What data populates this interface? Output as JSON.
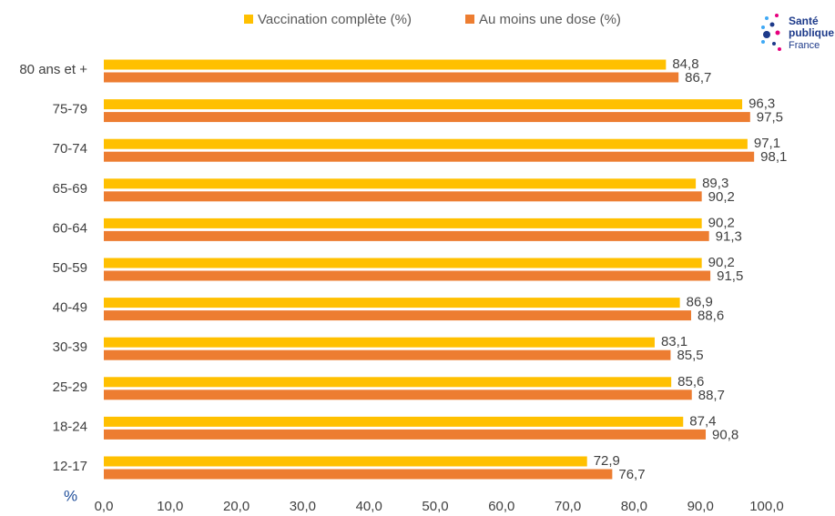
{
  "chart_data": {
    "type": "bar",
    "orientation": "horizontal",
    "axis_label": "%",
    "categories": [
      "80 ans et +",
      "75-79",
      "70-74",
      "65-69",
      "60-64",
      "50-59",
      "40-49",
      "30-39",
      "25-29",
      "18-24",
      "12-17"
    ],
    "series": [
      {
        "name": "Vaccination complète (%)",
        "color": "#ffc000",
        "values": [
          84.8,
          96.3,
          97.1,
          89.3,
          90.2,
          90.2,
          86.9,
          83.1,
          85.6,
          87.4,
          72.9
        ],
        "value_labels": [
          "84,8",
          "96,3",
          "97,1",
          "89,3",
          "90,2",
          "90,2",
          "86,9",
          "83,1",
          "85,6",
          "87,4",
          "72,9"
        ]
      },
      {
        "name": "Au moins une dose (%)",
        "color": "#ed7d31",
        "values": [
          86.7,
          97.5,
          98.1,
          90.2,
          91.3,
          91.5,
          88.6,
          85.5,
          88.7,
          90.8,
          76.7
        ],
        "value_labels": [
          "86,7",
          "97,5",
          "98,1",
          "90,2",
          "91,3",
          "91,5",
          "88,6",
          "85,5",
          "88,7",
          "90,8",
          "76,7"
        ]
      }
    ],
    "xlim": [
      0,
      100
    ],
    "xticks": [
      {
        "value": 0,
        "label": "0,0"
      },
      {
        "value": 10,
        "label": "10,0"
      },
      {
        "value": 20,
        "label": "20,0"
      },
      {
        "value": 30,
        "label": "30,0"
      },
      {
        "value": 40,
        "label": "40,0"
      },
      {
        "value": 50,
        "label": "50,0"
      },
      {
        "value": 60,
        "label": "60,0"
      },
      {
        "value": 70,
        "label": "70,0"
      },
      {
        "value": 80,
        "label": "80,0"
      },
      {
        "value": 90,
        "label": "90,0"
      },
      {
        "value": 100,
        "label": "100,0"
      }
    ],
    "legend": "top",
    "grid": false
  },
  "logo": {
    "lines": [
      "Santé",
      "publique",
      "France"
    ]
  }
}
